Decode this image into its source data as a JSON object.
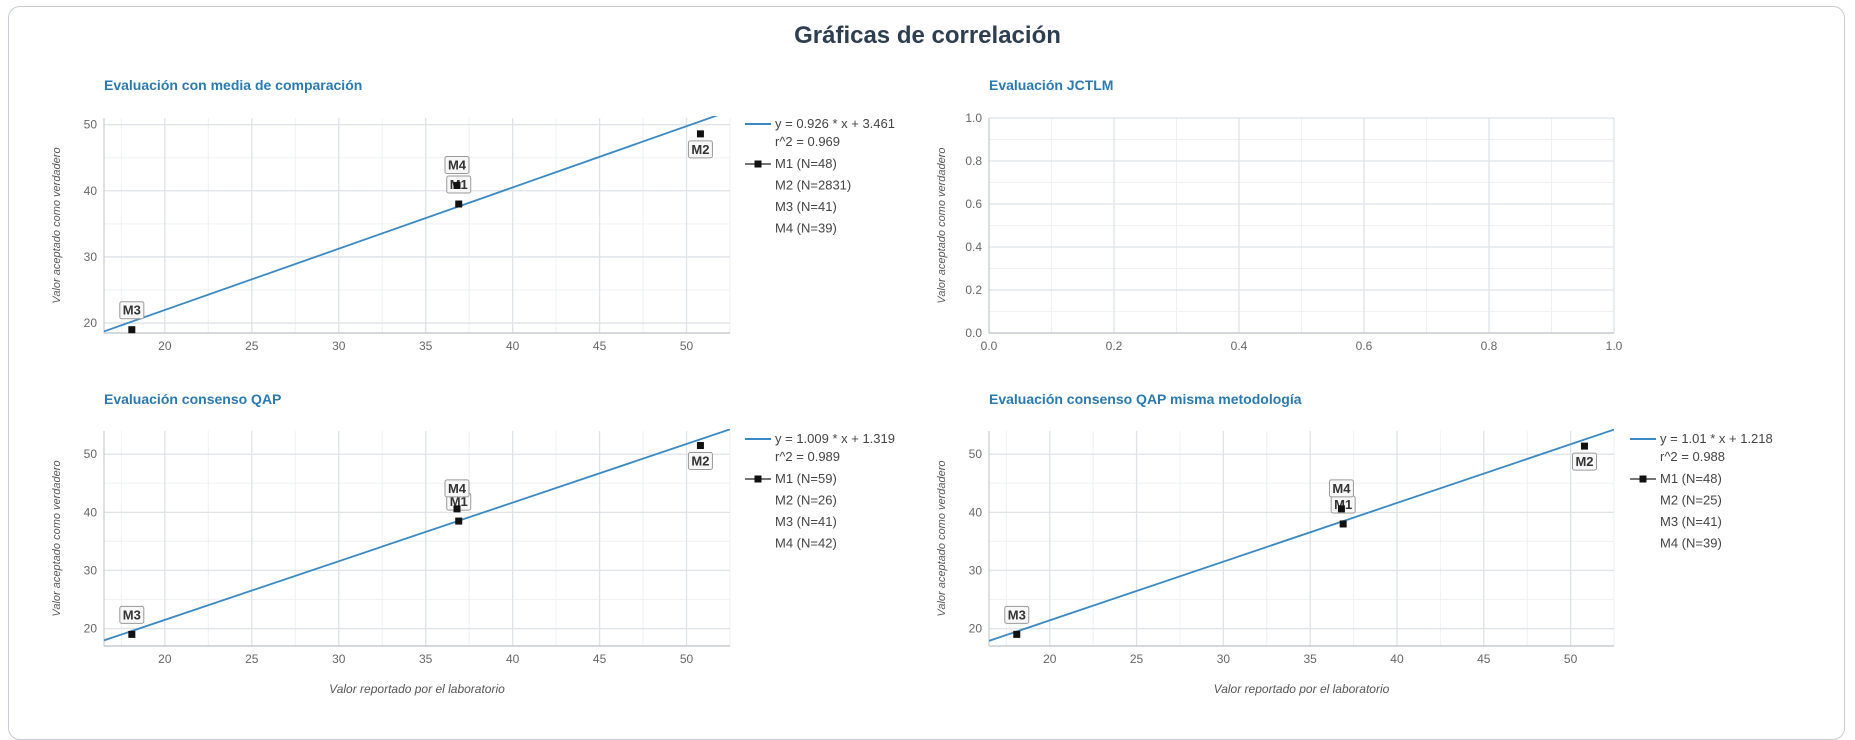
{
  "page": {
    "title": "Gráficas de correlación"
  },
  "colors": {
    "title": "#2c3e50",
    "panel_title": "#2a7ab0",
    "line": "#3a88c4",
    "grid": "#dfe3e8",
    "axis": "#c7ccd2",
    "point": "#111111",
    "legend_text": "#444444"
  },
  "chart_data": [
    {
      "type": "scatter",
      "title": "Evaluación con media de comparación",
      "xlabel": "",
      "ylabel": "Valor aceptado como verdadero",
      "xlim": [
        16.5,
        52.5
      ],
      "ylim": [
        18.5,
        51
      ],
      "xticks": [
        20,
        25,
        30,
        35,
        40,
        45,
        50
      ],
      "yticks": [
        20,
        30,
        40,
        50
      ],
      "grid": true,
      "legend_position": "right",
      "points": [
        {
          "label": "M1",
          "x": 36.9,
          "y": 38
        },
        {
          "label": "M2",
          "x": 50.8,
          "y": 48.6
        },
        {
          "label": "M3",
          "x": 18.1,
          "y": 19
        },
        {
          "label": "M4",
          "x": 36.8,
          "y": 40.8
        }
      ],
      "regression": {
        "slope": 0.926,
        "intercept": 3.461,
        "equation": "y = 0.926 * x + 3.461",
        "r2": "r^2 = 0.969"
      },
      "legend": [
        "M1 (N=48)",
        "M2 (N=2831)",
        "M3 (N=41)",
        "M4 (N=39)"
      ]
    },
    {
      "type": "scatter",
      "title": "Evaluación JCTLM",
      "xlabel": "",
      "ylabel": "Valor aceptado como verdadero",
      "xlim": [
        0,
        1
      ],
      "ylim": [
        0,
        1
      ],
      "xticks": [
        0.0,
        0.2,
        0.4,
        0.6,
        0.8,
        1.0
      ],
      "yticks": [
        0.0,
        0.2,
        0.4,
        0.6,
        0.8,
        1.0
      ],
      "tick_format": "0.0",
      "grid": true,
      "points": [],
      "legend": []
    },
    {
      "type": "scatter",
      "title": "Evaluación consenso QAP",
      "xlabel": "Valor reportado por el laboratorio",
      "ylabel": "Valor aceptado como verdadero",
      "xlim": [
        16.5,
        52.5
      ],
      "ylim": [
        17,
        54
      ],
      "xticks": [
        20,
        25,
        30,
        35,
        40,
        45,
        50
      ],
      "yticks": [
        20,
        30,
        40,
        50
      ],
      "grid": true,
      "legend_position": "right",
      "points": [
        {
          "label": "M1",
          "x": 36.9,
          "y": 38.5
        },
        {
          "label": "M2",
          "x": 50.8,
          "y": 51.5
        },
        {
          "label": "M3",
          "x": 18.1,
          "y": 19
        },
        {
          "label": "M4",
          "x": 36.8,
          "y": 40.6
        }
      ],
      "regression": {
        "slope": 1.009,
        "intercept": 1.319,
        "equation": "y = 1.009 * x + 1.319",
        "r2": "r^2 = 0.989"
      },
      "legend": [
        "M1 (N=59)",
        "M2 (N=26)",
        "M3 (N=41)",
        "M4 (N=42)"
      ]
    },
    {
      "type": "scatter",
      "title": "Evaluación consenso QAP misma metodología",
      "xlabel": "Valor reportado por el laboratorio",
      "ylabel": "Valor aceptado como verdadero",
      "xlim": [
        16.5,
        52.5
      ],
      "ylim": [
        17,
        54
      ],
      "xticks": [
        20,
        25,
        30,
        35,
        40,
        45,
        50
      ],
      "yticks": [
        20,
        30,
        40,
        50
      ],
      "grid": true,
      "legend_position": "right",
      "points": [
        {
          "label": "M1",
          "x": 36.9,
          "y": 38
        },
        {
          "label": "M2",
          "x": 50.8,
          "y": 51.4
        },
        {
          "label": "M3",
          "x": 18.1,
          "y": 19
        },
        {
          "label": "M4",
          "x": 36.8,
          "y": 40.6
        }
      ],
      "regression": {
        "slope": 1.01,
        "intercept": 1.218,
        "equation": "y = 1.01 * x + 1.218",
        "r2": "r^2 = 0.988"
      },
      "legend": [
        "M1 (N=48)",
        "M2 (N=25)",
        "M3 (N=41)",
        "M4 (N=39)"
      ]
    }
  ]
}
